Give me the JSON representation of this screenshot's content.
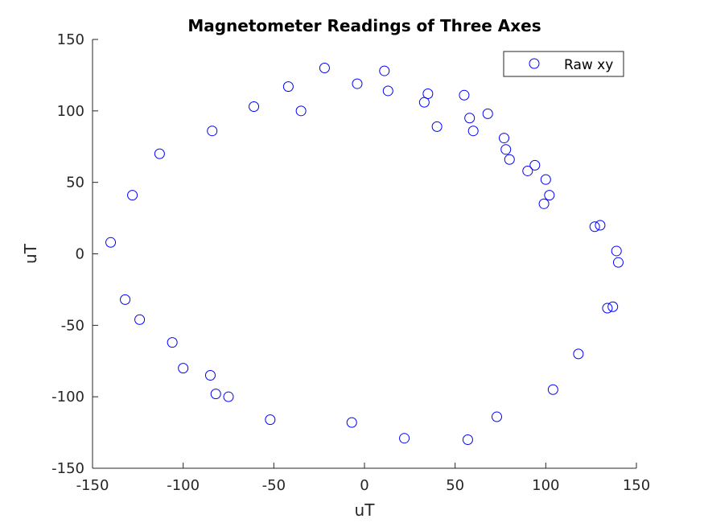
{
  "chart_data": {
    "type": "scatter",
    "title": "Magnetometer Readings of Three Axes",
    "xlabel": "uT",
    "ylabel": "uT",
    "xlim": [
      -150,
      150
    ],
    "ylim": [
      -150,
      150
    ],
    "xticks": [
      -150,
      -100,
      -50,
      0,
      50,
      100,
      150
    ],
    "yticks": [
      -150,
      -100,
      -50,
      0,
      50,
      100,
      150
    ],
    "xtick_labels": [
      "-150",
      "-100",
      "-50",
      "0",
      "50",
      "100",
      "150"
    ],
    "ytick_labels": [
      "-150",
      "-100",
      "-50",
      "0",
      "50",
      "100",
      "150"
    ],
    "grid": false,
    "legend": {
      "position": "top-right",
      "entries": [
        "Raw xy"
      ]
    },
    "series": [
      {
        "name": "Raw xy",
        "marker": "open-circle",
        "color": "#0000ff",
        "points": [
          [
            -140,
            8
          ],
          [
            -132,
            -32
          ],
          [
            -128,
            41
          ],
          [
            -124,
            -46
          ],
          [
            -113,
            70
          ],
          [
            -106,
            -62
          ],
          [
            -100,
            -80
          ],
          [
            -85,
            -85
          ],
          [
            -84,
            86
          ],
          [
            -82,
            -98
          ],
          [
            -75,
            -100
          ],
          [
            -61,
            103
          ],
          [
            -52,
            -116
          ],
          [
            -42,
            117
          ],
          [
            -35,
            100
          ],
          [
            -22,
            130
          ],
          [
            -7,
            -118
          ],
          [
            -4,
            119
          ],
          [
            11,
            128
          ],
          [
            13,
            114
          ],
          [
            22,
            -129
          ],
          [
            33,
            106
          ],
          [
            35,
            112
          ],
          [
            40,
            89
          ],
          [
            55,
            111
          ],
          [
            57,
            -130
          ],
          [
            58,
            95
          ],
          [
            60,
            86
          ],
          [
            68,
            98
          ],
          [
            73,
            -114
          ],
          [
            77,
            81
          ],
          [
            78,
            73
          ],
          [
            80,
            66
          ],
          [
            90,
            58
          ],
          [
            94,
            62
          ],
          [
            99,
            35
          ],
          [
            100,
            52
          ],
          [
            102,
            41
          ],
          [
            104,
            -95
          ],
          [
            118,
            -70
          ],
          [
            127,
            19
          ],
          [
            130,
            20
          ],
          [
            134,
            -38
          ],
          [
            137,
            -37
          ],
          [
            139,
            2
          ],
          [
            140,
            -6
          ]
        ]
      }
    ]
  }
}
